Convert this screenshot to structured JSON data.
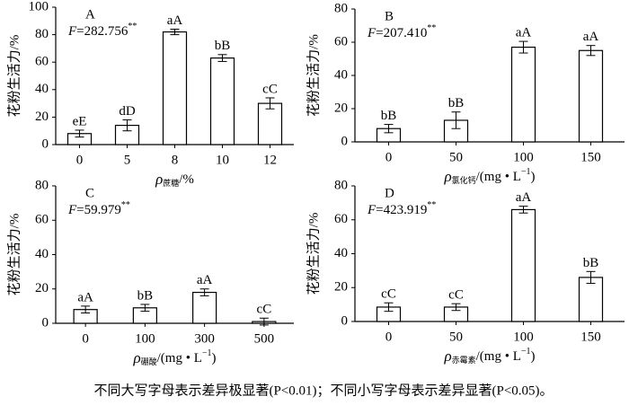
{
  "chart_data": [
    {
      "type": "bar",
      "panel": "A",
      "stat_symbol": "F",
      "stat_value": "=282.756",
      "stat_sup": "**",
      "ylabel": "花粉生活力/%",
      "xlabel": {
        "symbol": "ρ",
        "subscript": "蔗糖",
        "unit": "/%"
      },
      "categories": [
        "0",
        "5",
        "8",
        "10",
        "12"
      ],
      "values": [
        8,
        14,
        82,
        63,
        30
      ],
      "errors": [
        2.5,
        4,
        2,
        2.5,
        4
      ],
      "significance": [
        "eE",
        "dD",
        "aA",
        "bB",
        "cC"
      ],
      "color": "#ffffff",
      "ylim": [
        0,
        100
      ],
      "yticks": [
        0,
        20,
        40,
        60,
        80,
        100
      ]
    },
    {
      "type": "bar",
      "panel": "B",
      "stat_symbol": "F",
      "stat_value": "=207.410",
      "stat_sup": "**",
      "ylabel": "花粉生活力/%",
      "xlabel": {
        "symbol": "ρ",
        "subscript": "氯化钙",
        "unit": "/(mg • L",
        "unit_sup": "−1",
        "unit_end": ")"
      },
      "categories": [
        "0",
        "50",
        "100",
        "150"
      ],
      "values": [
        8,
        13,
        57,
        55
      ],
      "errors": [
        2.5,
        5,
        3.5,
        3
      ],
      "significance": [
        "bB",
        "bB",
        "aA",
        "aA"
      ],
      "color": "#ffffff",
      "ylim": [
        0,
        80
      ],
      "yticks": [
        0,
        20,
        40,
        60,
        80
      ]
    },
    {
      "type": "bar",
      "panel": "C",
      "stat_symbol": "F",
      "stat_value": "=59.979",
      "stat_sup": "**",
      "ylabel": "花粉生活力/%",
      "xlabel": {
        "symbol": "ρ",
        "subscript": "硼酸",
        "unit": "/(mg • L",
        "unit_sup": "−1",
        "unit_end": ")"
      },
      "categories": [
        "0",
        "100",
        "300",
        "500"
      ],
      "values": [
        8,
        9,
        18,
        1
      ],
      "errors": [
        2,
        2,
        2,
        2
      ],
      "significance": [
        "aA",
        "bB",
        "aA",
        "cC"
      ],
      "color": "#ffffff",
      "ylim": [
        0,
        80
      ],
      "yticks": [
        0,
        20,
        40,
        60,
        80
      ]
    },
    {
      "type": "bar",
      "panel": "D",
      "stat_symbol": "F",
      "stat_value": "=423.919",
      "stat_sup": "**",
      "ylabel": "花粉生活力/%",
      "xlabel": {
        "symbol": "ρ",
        "subscript": "赤霉素",
        "unit": "/(mg • L",
        "unit_sup": "−1",
        "unit_end": ")"
      },
      "categories": [
        "0",
        "50",
        "100",
        "150"
      ],
      "values": [
        8.5,
        8.5,
        66,
        26
      ],
      "errors": [
        2.5,
        2,
        2,
        3.5
      ],
      "significance": [
        "cC",
        "cC",
        "aA",
        "bB"
      ],
      "color": "#ffffff",
      "ylim": [
        0,
        80
      ],
      "yticks": [
        0,
        20,
        40,
        60,
        80
      ]
    }
  ],
  "caption": "不同大写字母表示差异极显著(P<0.01)；不同小写字母表示差异显著(P<0.05)。"
}
